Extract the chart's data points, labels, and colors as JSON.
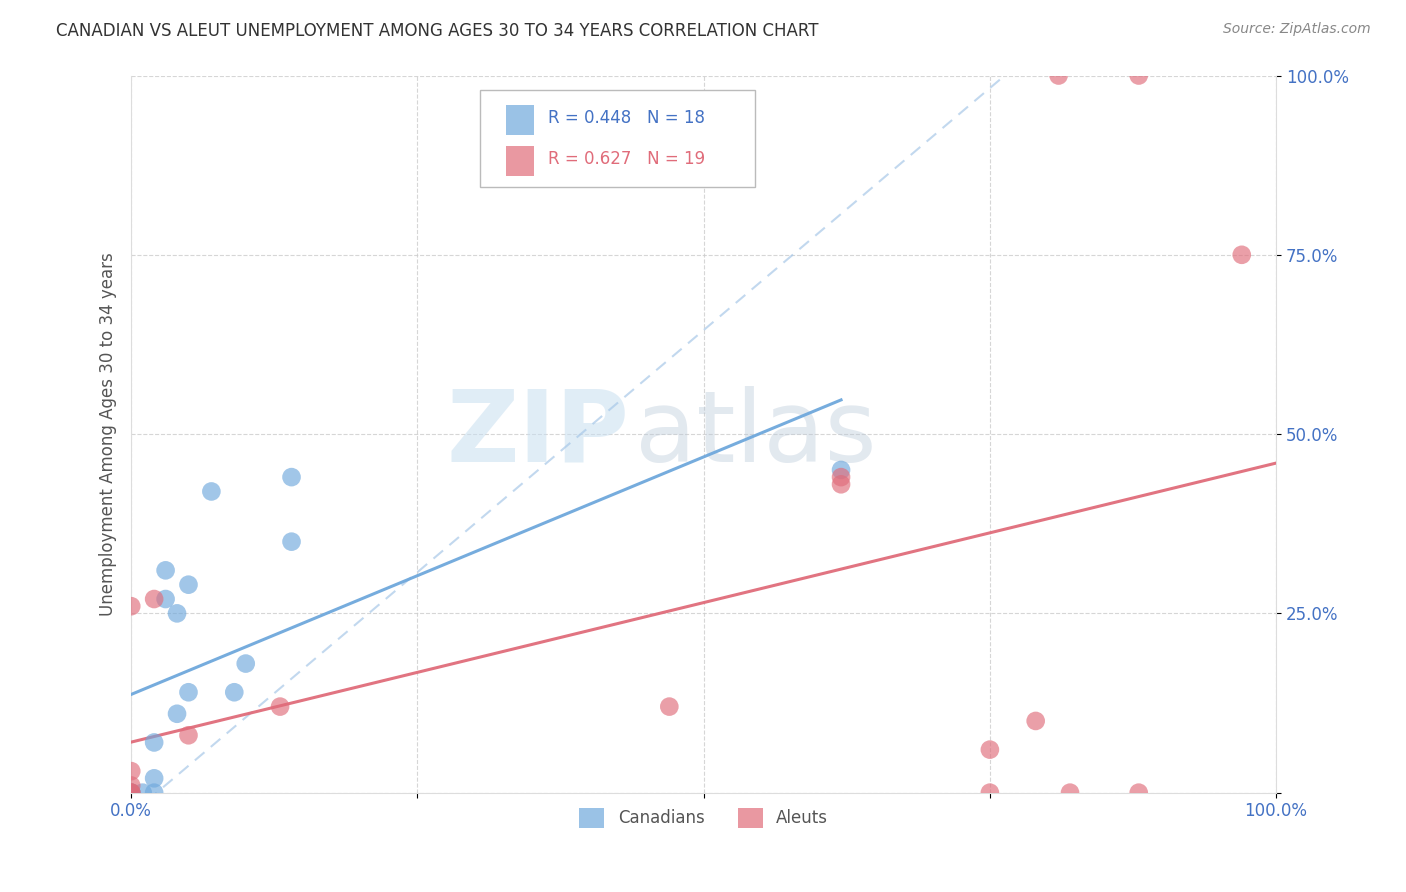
{
  "title": "CANADIAN VS ALEUT UNEMPLOYMENT AMONG AGES 30 TO 34 YEARS CORRELATION CHART",
  "source": "Source: ZipAtlas.com",
  "ylabel": "Unemployment Among Ages 30 to 34 years",
  "xlim": [
    0,
    1.0
  ],
  "ylim": [
    0,
    1.0
  ],
  "canadian_color": "#6fa8dc",
  "aleut_color": "#e06c7a",
  "canadian_R": 0.448,
  "canadian_N": 18,
  "aleut_R": 0.627,
  "aleut_N": 19,
  "canadians_x": [
    0.0,
    0.0,
    0.01,
    0.02,
    0.02,
    0.02,
    0.03,
    0.03,
    0.04,
    0.04,
    0.05,
    0.05,
    0.07,
    0.09,
    0.1,
    0.14,
    0.14,
    0.62
  ],
  "canadians_y": [
    0.0,
    0.0,
    0.0,
    0.02,
    0.07,
    0.0,
    0.27,
    0.31,
    0.11,
    0.25,
    0.14,
    0.29,
    0.42,
    0.14,
    0.18,
    0.35,
    0.44,
    0.45
  ],
  "aleuts_x": [
    0.0,
    0.0,
    0.0,
    0.0,
    0.0,
    0.02,
    0.05,
    0.13,
    0.47,
    0.62,
    0.62,
    0.75,
    0.75,
    0.79,
    0.81,
    0.82,
    0.88,
    0.88,
    0.97
  ],
  "aleuts_y": [
    0.0,
    0.0,
    0.01,
    0.03,
    0.26,
    0.27,
    0.08,
    0.12,
    0.12,
    0.43,
    0.44,
    0.0,
    0.06,
    0.1,
    1.0,
    0.0,
    1.0,
    0.0,
    0.75
  ],
  "background_color": "#ffffff",
  "watermark_zip": "ZIP",
  "watermark_atlas": "atlas",
  "grid_color": "#cccccc",
  "tick_label_color": "#4472c4",
  "axis_label_color": "#555555"
}
